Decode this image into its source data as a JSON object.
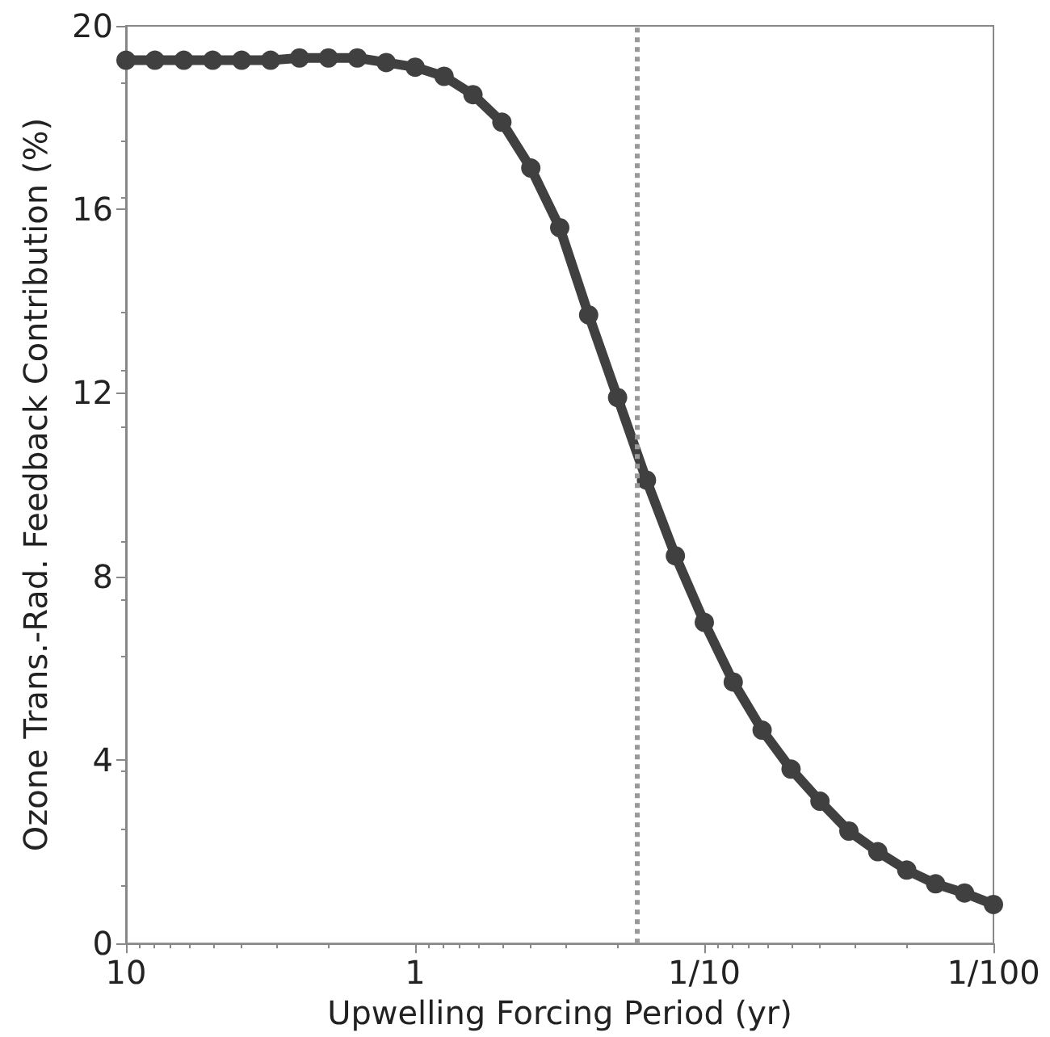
{
  "chart_data": {
    "type": "line",
    "xlabel": "Upwelling Forcing Period (yr)",
    "ylabel": "Ozone Trans.-Rad. Feedback Contribution (%)",
    "log": "x",
    "x": [
      10,
      7.943,
      6.31,
      5.012,
      3.981,
      3.162,
      2.512,
      1.995,
      1.585,
      1.259,
      1,
      0.7943,
      0.631,
      0.5012,
      0.3981,
      0.3162,
      0.2512,
      0.1995,
      0.1585,
      0.1259,
      0.1,
      0.07943,
      0.0631,
      0.05012,
      0.03981,
      0.03162,
      0.02512,
      0.01995,
      0.01585,
      0.01259,
      0.01
    ],
    "series": [
      {
        "color": "#404040",
        "values": [
          19.25,
          19.25,
          19.25,
          19.25,
          19.25,
          19.25,
          19.3,
          19.3,
          19.3,
          19.2,
          19.1,
          18.9,
          18.5,
          17.9,
          16.9,
          15.6,
          13.7,
          11.9,
          10.1,
          8.45,
          7.0,
          5.7,
          4.65,
          3.8,
          3.1,
          2.45,
          2.0,
          1.6,
          1.3,
          1.1,
          0.85
        ]
      }
    ],
    "xlim": [
      10,
      0.01
    ],
    "xticks": [
      {
        "value": 10,
        "label": "10"
      },
      {
        "value": 1,
        "label": "1"
      },
      {
        "value": 0.1,
        "label": "1/10"
      },
      {
        "value": 0.01,
        "label": "1/100"
      }
    ],
    "ylim": [
      0,
      20
    ],
    "yticks": [
      0,
      4,
      8,
      12,
      16,
      20
    ],
    "grid": false,
    "marker": "circle",
    "line_style": "solid",
    "ref_lines": [
      {
        "axis": "x",
        "value": 0.167,
        "color": "#999999",
        "line_style": "dotted"
      }
    ]
  }
}
